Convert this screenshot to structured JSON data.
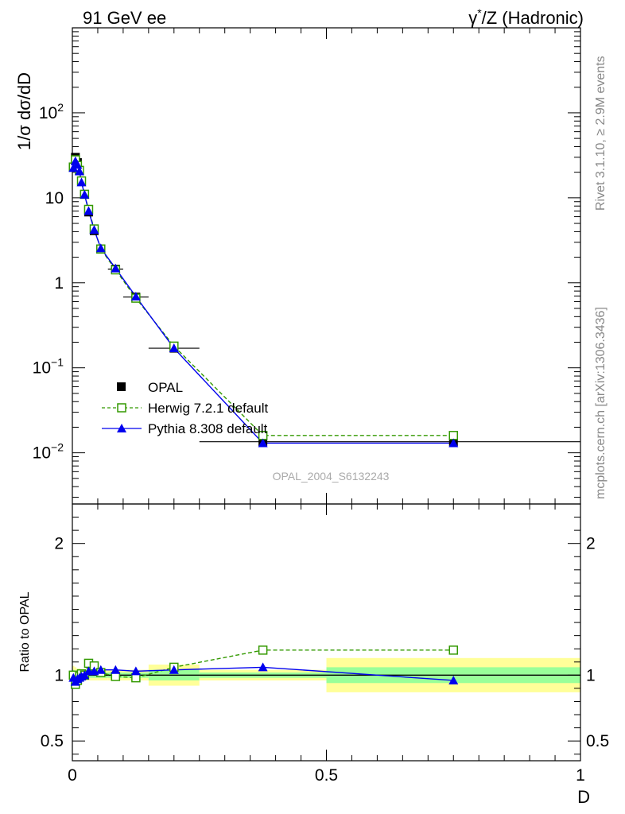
{
  "header": {
    "left": "91 GeV ee",
    "right_prefix": "γ",
    "right_sup": "*",
    "right_suffix": "/Z (Hadronic)"
  },
  "side_labels": {
    "rivet": "Rivet 3.1.10, ≥ 2.9M events",
    "mcplots": "mcplots.cern.ch [arXiv:1306.3436]"
  },
  "watermark": "OPAL_2004_S6132243",
  "colors": {
    "data": "#000000",
    "herwig": "#339900",
    "pythia": "#0000ee",
    "band_outer": "#ffff99",
    "band_inner": "#99ff99"
  },
  "legend": {
    "position": "lower-left",
    "entries": [
      {
        "key": "data",
        "label": "OPAL"
      },
      {
        "key": "herwig",
        "label": "Herwig 7.2.1 default"
      },
      {
        "key": "pythia",
        "label": "Pythia 8.308 default"
      }
    ]
  },
  "chart_data": [
    {
      "type": "scatter",
      "panel": "main",
      "title": "",
      "xlabel": "",
      "ylabel": "1/σ dσ/dD",
      "xlim": [
        0,
        1
      ],
      "ylim": [
        0.0025,
        1000
      ],
      "yscale": "log",
      "y_tick_labels": [
        {
          "value": 0.01,
          "base": "10",
          "exp": "−2"
        },
        {
          "value": 0.1,
          "base": "10",
          "exp": "−1"
        },
        {
          "value": 1,
          "base": "1",
          "exp": ""
        },
        {
          "value": 10,
          "base": "10",
          "exp": ""
        },
        {
          "value": 100,
          "base": "10",
          "exp": "2"
        }
      ],
      "series": [
        {
          "name": "OPAL",
          "style": "markers",
          "x": [
            0.002,
            0.006,
            0.01,
            0.014,
            0.018,
            0.024,
            0.032,
            0.043,
            0.056,
            0.085,
            0.125,
            0.2,
            0.375,
            0.75
          ],
          "y": [
            23,
            30,
            26,
            21,
            15.5,
            11,
            6.8,
            4.1,
            2.5,
            1.45,
            0.68,
            0.17,
            0.0135,
            0.0135
          ],
          "xerr": [
            0.002,
            0.002,
            0.002,
            0.002,
            0.002,
            0.004,
            0.004,
            0.0075,
            0.0075,
            0.015,
            0.025,
            0.05,
            0.125,
            0.25
          ]
        },
        {
          "name": "Herwig 7.2.1 default",
          "style": "dashed-open-square",
          "x": [
            0.002,
            0.006,
            0.01,
            0.014,
            0.018,
            0.024,
            0.032,
            0.043,
            0.056,
            0.085,
            0.125,
            0.2,
            0.375,
            0.75
          ],
          "y": [
            23,
            28,
            24,
            21,
            15.8,
            11,
            7.3,
            4.3,
            2.5,
            1.42,
            0.66,
            0.18,
            0.016,
            0.016
          ]
        },
        {
          "name": "Pythia 8.308 default",
          "style": "solid-triangle",
          "x": [
            0.002,
            0.006,
            0.01,
            0.014,
            0.018,
            0.024,
            0.032,
            0.043,
            0.056,
            0.085,
            0.125,
            0.2,
            0.375,
            0.75
          ],
          "y": [
            22.5,
            27,
            24.5,
            20.5,
            15.2,
            10.9,
            7.0,
            4.2,
            2.55,
            1.48,
            0.69,
            0.17,
            0.013,
            0.013
          ]
        }
      ]
    },
    {
      "type": "scatter",
      "panel": "ratio",
      "title": "",
      "xlabel": "D",
      "ylabel": "Ratio to OPAL",
      "xlim": [
        0,
        1
      ],
      "ylim": [
        0.35,
        2.3
      ],
      "x_tick_labels": [
        {
          "value": 0,
          "label": "0"
        },
        {
          "value": 0.5,
          "label": "0.5"
        },
        {
          "value": 1,
          "label": "1"
        }
      ],
      "y_tick_labels": [
        {
          "value": 0.5,
          "label": "0.5"
        },
        {
          "value": 1,
          "label": "1"
        },
        {
          "value": 2,
          "label": "2"
        }
      ],
      "reference_band": {
        "bins": [
          {
            "x0": 0.0,
            "x1": 0.004,
            "inner": 0.04,
            "outer": 0.07
          },
          {
            "x0": 0.004,
            "x1": 0.008,
            "inner": 0.03,
            "outer": 0.06
          },
          {
            "x0": 0.008,
            "x1": 0.012,
            "inner": 0.02,
            "outer": 0.05
          },
          {
            "x0": 0.012,
            "x1": 0.016,
            "inner": 0.02,
            "outer": 0.05
          },
          {
            "x0": 0.016,
            "x1": 0.02,
            "inner": 0.02,
            "outer": 0.04
          },
          {
            "x0": 0.02,
            "x1": 0.028,
            "inner": 0.02,
            "outer": 0.04
          },
          {
            "x0": 0.028,
            "x1": 0.036,
            "inner": 0.02,
            "outer": 0.04
          },
          {
            "x0": 0.036,
            "x1": 0.05,
            "inner": 0.02,
            "outer": 0.04
          },
          {
            "x0": 0.05,
            "x1": 0.07,
            "inner": 0.02,
            "outer": 0.04
          },
          {
            "x0": 0.07,
            "x1": 0.1,
            "inner": 0.02,
            "outer": 0.04
          },
          {
            "x0": 0.1,
            "x1": 0.15,
            "inner": 0.02,
            "outer": 0.04
          },
          {
            "x0": 0.15,
            "x1": 0.25,
            "inner": 0.04,
            "outer": 0.08
          },
          {
            "x0": 0.25,
            "x1": 0.5,
            "inner": 0.02,
            "outer": 0.04
          },
          {
            "x0": 0.5,
            "x1": 1.0,
            "inner": 0.06,
            "outer": 0.13
          }
        ]
      },
      "series": [
        {
          "name": "Herwig 7.2.1 default",
          "style": "dashed-open-square",
          "x": [
            0.002,
            0.006,
            0.01,
            0.014,
            0.018,
            0.024,
            0.032,
            0.043,
            0.056,
            0.085,
            0.125,
            0.2,
            0.375,
            0.75
          ],
          "y": [
            1.0,
            0.93,
            0.96,
            0.99,
            1.01,
            1.0,
            1.09,
            1.07,
            1.02,
            0.99,
            0.98,
            1.06,
            1.19,
            1.19
          ]
        },
        {
          "name": "Pythia 8.308 default",
          "style": "solid-triangle",
          "x": [
            0.002,
            0.006,
            0.01,
            0.014,
            0.018,
            0.024,
            0.032,
            0.043,
            0.056,
            0.085,
            0.125,
            0.2,
            0.375,
            0.75
          ],
          "y": [
            0.98,
            0.95,
            0.97,
            0.98,
            0.99,
            1.0,
            1.03,
            1.03,
            1.04,
            1.04,
            1.03,
            1.04,
            1.06,
            0.96
          ]
        }
      ]
    }
  ]
}
